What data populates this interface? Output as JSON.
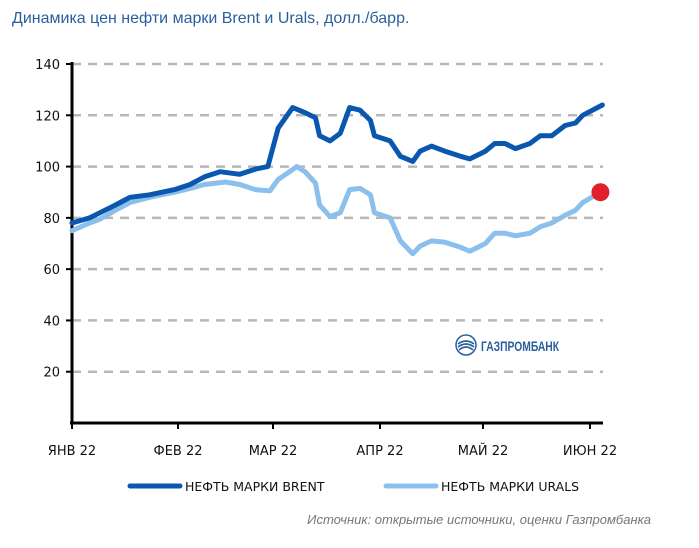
{
  "chart_data": {
    "type": "line",
    "title": "Динамика цен нефти марки Brent и Urals, долл./барр.",
    "xlabel": "",
    "ylabel": "",
    "ylim": [
      0,
      140
    ],
    "xlim_months": [
      0,
      5.12
    ],
    "yticks": [
      "20",
      "40",
      "60",
      "80",
      "100",
      "120",
      "140"
    ],
    "ytick_values": [
      20,
      40,
      60,
      80,
      100,
      120,
      140
    ],
    "xticks": [
      "ЯНВ 22",
      "ФЕВ 22",
      "МАР 22",
      "АПР 22",
      "МАЙ 22",
      "ИЮН 22"
    ],
    "grid": true,
    "legend_placement": "bottom",
    "series": [
      {
        "name": "НЕФТЬ МАРКИ BRENT",
        "color": "#0a57b0",
        "x": [
          0,
          0.17,
          0.27,
          0.42,
          0.56,
          0.75,
          0.99,
          1.14,
          1.28,
          1.43,
          1.62,
          1.77,
          1.89,
          1.99,
          2.13,
          2.25,
          2.35,
          2.39,
          2.49,
          2.59,
          2.68,
          2.78,
          2.88,
          2.92,
          3.07,
          3.17,
          3.29,
          3.36,
          3.47,
          3.6,
          3.75,
          3.84,
          3.99,
          4.08,
          4.18,
          4.28,
          4.42,
          4.52,
          4.63,
          4.76,
          4.86,
          4.93,
          5.12
        ],
        "y": [
          78,
          80,
          82,
          85,
          88,
          89,
          91,
          93,
          96,
          98,
          97,
          99,
          100,
          115,
          123,
          121,
          119,
          112,
          110,
          113,
          123,
          122,
          118,
          112,
          110,
          104,
          102,
          106,
          108,
          106,
          104,
          103,
          106,
          109,
          109,
          107,
          109,
          112,
          112,
          116,
          117,
          120,
          124
        ]
      },
      {
        "name": "НЕФТЬ МАРКИ URALS",
        "color": "#8cc0ec",
        "x": [
          0,
          0.17,
          0.27,
          0.42,
          0.56,
          0.75,
          0.99,
          1.14,
          1.28,
          1.48,
          1.62,
          1.77,
          1.91,
          1.99,
          2.1,
          2.17,
          2.25,
          2.35,
          2.39,
          2.49,
          2.59,
          2.68,
          2.78,
          2.88,
          2.92,
          3.07,
          3.17,
          3.29,
          3.36,
          3.47,
          3.6,
          3.75,
          3.84,
          3.99,
          4.08,
          4.18,
          4.28,
          4.42,
          4.52,
          4.63,
          4.76,
          4.86,
          4.93,
          5.1
        ],
        "y": [
          75,
          78,
          79.5,
          83,
          86,
          88,
          90,
          91.5,
          93,
          94,
          93,
          91,
          90.5,
          95,
          98,
          100,
          98,
          93.5,
          85,
          80.5,
          82,
          91,
          91.5,
          89,
          82,
          80,
          71,
          66,
          69,
          71,
          70.5,
          68.5,
          67,
          70,
          74,
          74,
          73,
          74,
          76.5,
          78,
          81,
          83,
          86,
          90
        ]
      }
    ],
    "annotations": [
      {
        "type": "marker",
        "series": "НЕФТЬ МАРКИ URALS",
        "x": 5.12,
        "y": 90,
        "color": "#e0202a"
      }
    ],
    "logo_text": "ГАЗПРОМБАНК",
    "source": "Источник: открытые источники, оценки Газпромбанка"
  }
}
